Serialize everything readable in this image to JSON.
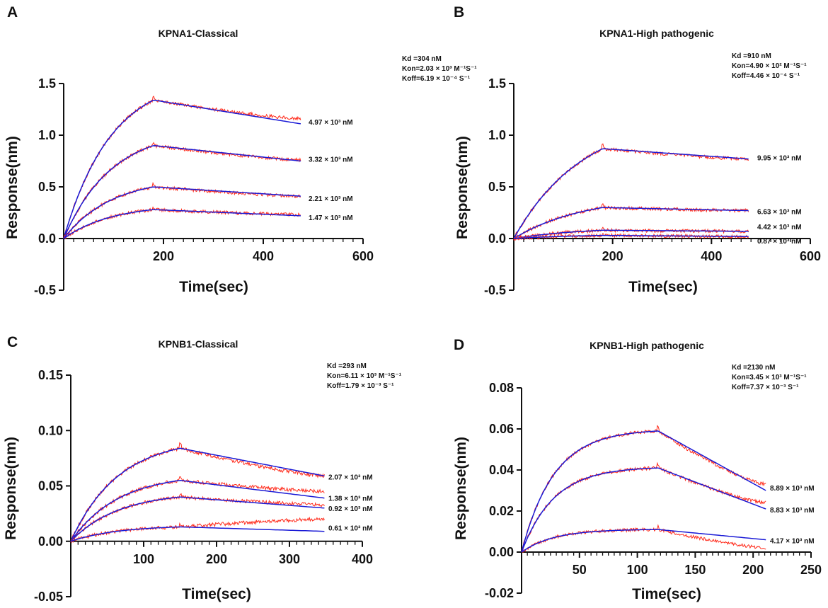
{
  "figure": {
    "colors": {
      "raw": "#ff2a1a",
      "fit": "#1a1ad6",
      "axis": "#111111"
    },
    "panels": [
      {
        "letter": "A",
        "title": "KPNA1-Classical",
        "annotations": [
          "Kd =304 nM",
          "Kon=2.03 × 10³ M⁻¹S⁻¹",
          "Koff=6.19 × 10⁻⁴ S⁻¹"
        ]
      },
      {
        "letter": "B",
        "title": "KPNA1-High pathogenic",
        "annotations": [
          "Kd =910 nM",
          "Kon=4.90 × 10² M⁻¹S⁻¹",
          "Koff=4.46 × 10⁻⁴ S⁻¹"
        ]
      },
      {
        "letter": "C",
        "title": "KPNB1-Classical",
        "annotations": [
          "Kd =293 nM",
          "Kon=6.11 × 10³ M⁻¹S⁻¹",
          "Koff=1.79 × 10⁻³ S⁻¹"
        ]
      },
      {
        "letter": "D",
        "title": "KPNB1-High pathogenic",
        "annotations": [
          "Kd =2130 nM",
          "Kon=3.45 × 10³ M⁻¹S⁻¹",
          "Koff=7.37 × 10⁻³ S⁻¹"
        ]
      }
    ]
  },
  "chart_data": [
    {
      "type": "line",
      "title": "KPNA1-Classical",
      "xlabel": "Time(sec)",
      "ylabel": "Response(nm)",
      "xlim": [
        0,
        600
      ],
      "ylim": [
        -0.5,
        1.5
      ],
      "xticks": [
        200,
        400,
        600
      ],
      "yticks": [
        -0.5,
        0.0,
        0.5,
        1.0,
        1.5
      ],
      "ytick_labels": [
        "-0.5",
        "0.0",
        "0.5",
        "1.0",
        "1.5"
      ],
      "t_assoc_end": 180,
      "t_end": 475,
      "series": [
        {
          "name": "4.97 × 10³ nM",
          "peak": 1.34,
          "end": 1.11,
          "raw_end": 1.16,
          "tau": 95
        },
        {
          "name": "3.32 × 10³ nM",
          "peak": 0.9,
          "end": 0.75,
          "raw_end": 0.76,
          "tau": 95
        },
        {
          "name": "2.21 × 10³ nM",
          "peak": 0.5,
          "end": 0.41,
          "raw_end": 0.41,
          "tau": 95
        },
        {
          "name": "1.47 × 10³ nM",
          "peak": 0.28,
          "end": 0.22,
          "raw_end": 0.23,
          "tau": 95
        }
      ]
    },
    {
      "type": "line",
      "title": "KPNA1-High pathogenic",
      "xlabel": "Time(sec)",
      "ylabel": "Response(nm)",
      "xlim": [
        0,
        600
      ],
      "ylim": [
        -0.5,
        1.5
      ],
      "xticks": [
        200,
        400,
        600
      ],
      "yticks": [
        -0.5,
        0.0,
        0.5,
        1.0,
        1.5
      ],
      "ytick_labels": [
        "-0.5",
        "0.0",
        "0.5",
        "1.0",
        "1.5"
      ],
      "t_assoc_end": 180,
      "t_end": 475,
      "series": [
        {
          "name": "9.95 × 10³ nM",
          "peak": 0.87,
          "end": 0.77,
          "raw_end": 0.77,
          "tau": 140
        },
        {
          "name": "6.63 × 10³ nM",
          "peak": 0.3,
          "end": 0.27,
          "raw_end": 0.27,
          "tau": 140
        },
        {
          "name": "4.42 × 10³ nM",
          "peak": 0.08,
          "end": 0.07,
          "raw_end": 0.07,
          "tau": 140
        },
        {
          "name": "0.87 × 10³ nM",
          "peak": 0.03,
          "end": 0.02,
          "raw_end": 0.02,
          "tau": 140
        }
      ]
    },
    {
      "type": "line",
      "title": "KPNB1-Classical",
      "xlabel": "Time(sec)",
      "ylabel": "Response(nm)",
      "xlim": [
        0,
        400
      ],
      "ylim": [
        -0.05,
        0.15
      ],
      "xticks": [
        100,
        200,
        300,
        400
      ],
      "yticks": [
        -0.05,
        0.0,
        0.05,
        0.1,
        0.15
      ],
      "ytick_labels": [
        "-0.05",
        "0.00",
        "0.05",
        "0.10",
        "0.15"
      ],
      "t_assoc_end": 150,
      "t_end": 348,
      "series": [
        {
          "name": "2.07 × 10³ nM",
          "peak": 0.084,
          "end": 0.059,
          "raw_end": 0.059,
          "tau": 65
        },
        {
          "name": "1.38 × 10³ nM",
          "peak": 0.055,
          "end": 0.039,
          "raw_end": 0.045,
          "tau": 65
        },
        {
          "name": "0.92 × 10³ nM",
          "peak": 0.04,
          "end": 0.03,
          "raw_end": 0.033,
          "tau": 65
        },
        {
          "name": "0.61 × 10³ nM",
          "peak": 0.013,
          "end": 0.009,
          "raw_end": 0.02,
          "tau": 65
        }
      ]
    },
    {
      "type": "line",
      "title": "KPNB1-High pathogenic",
      "xlabel": "Time(sec)",
      "ylabel": "Response(nm)",
      "xlim": [
        0,
        250
      ],
      "ylim": [
        -0.02,
        0.08
      ],
      "xticks": [
        50,
        100,
        150,
        200,
        250
      ],
      "yticks": [
        -0.02,
        0.0,
        0.02,
        0.04,
        0.06,
        0.08
      ],
      "ytick_labels": [
        "-0.02",
        "0.00",
        "0.02",
        "0.04",
        "0.06",
        "0.08"
      ],
      "t_assoc_end": 118,
      "t_end": 211,
      "series": [
        {
          "name": "8.89 × 10³ nM",
          "peak": 0.059,
          "end": 0.03,
          "raw_end": 0.033,
          "tau": 28
        },
        {
          "name": "8.83 × 10³ nM",
          "peak": 0.041,
          "end": 0.021,
          "raw_end": 0.024,
          "tau": 28
        },
        {
          "name": "4.17 × 10³ nM",
          "peak": 0.011,
          "end": 0.006,
          "raw_end": 0.002,
          "tau": 28
        }
      ]
    }
  ]
}
